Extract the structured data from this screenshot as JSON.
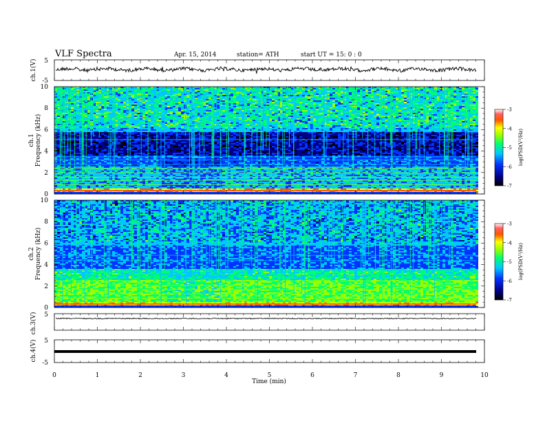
{
  "header": {
    "title": "VLF  Spectra",
    "date": "Apr. 15,  2014",
    "station": "station= ATH",
    "start": "start  UT  =   15: 0  : 0"
  },
  "chart_data": [
    {
      "id": "ch1-waveform",
      "type": "line",
      "ylabel": "ch.1(V)",
      "ylim": [
        -5,
        5
      ],
      "yticks": [
        "5",
        "-5"
      ],
      "xlim": [
        0,
        10
      ]
    },
    {
      "id": "ch1-spectrogram",
      "type": "heatmap",
      "ylabel_top": "ch.1",
      "ylabel": "Frequency  (kHz)",
      "ylim": [
        0,
        10
      ],
      "yticks": [
        "0",
        "2",
        "4",
        "6",
        "8",
        "10"
      ],
      "colorbar": {
        "label": "log(PSD(V²/Hz)",
        "ticks": [
          "-3",
          "-4",
          "-5",
          "-6",
          "-7"
        ],
        "range": [
          -7,
          -3
        ]
      }
    },
    {
      "id": "ch2-spectrogram",
      "type": "heatmap",
      "ylabel_top": "ch.2",
      "ylabel": "Frequency  (kHz)",
      "ylim": [
        0,
        10
      ],
      "yticks": [
        "0",
        "2",
        "4",
        "6",
        "8",
        "10"
      ],
      "colorbar": {
        "label": "log(PSD(V²/Hz)",
        "ticks": [
          "-3",
          "-4",
          "-5",
          "-6",
          "-7"
        ],
        "range": [
          -7,
          -3
        ]
      }
    },
    {
      "id": "ch3-waveform",
      "type": "line",
      "ylabel": "ch.3(V)",
      "ylim": [
        -5,
        5
      ],
      "yticks": [
        "5",
        "-5"
      ]
    },
    {
      "id": "ch4-waveform",
      "type": "line",
      "ylabel": "ch.4(V)",
      "ylim": [
        -5,
        5
      ],
      "yticks": [
        "5",
        "-5"
      ]
    }
  ],
  "xaxis": {
    "label": "Time  (min)",
    "ticks": [
      "0",
      "1",
      "2",
      "3",
      "4",
      "5",
      "6",
      "7",
      "8",
      "9",
      "10"
    ],
    "xlim": [
      0,
      10
    ]
  }
}
